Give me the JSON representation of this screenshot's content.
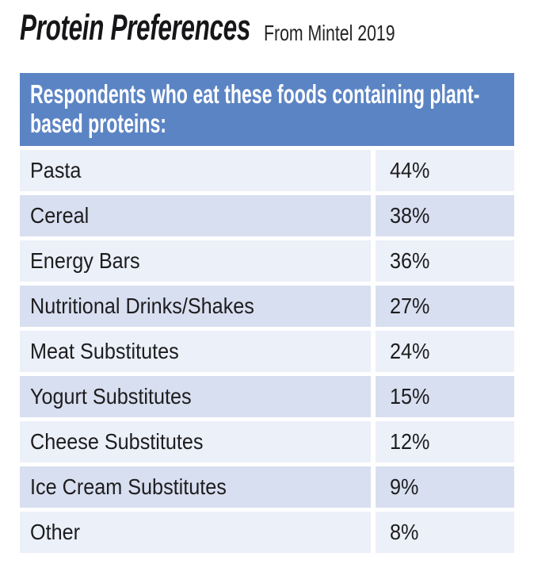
{
  "title": {
    "main": "Protein Preferences",
    "source": "From Mintel 2019"
  },
  "table": {
    "header": "Respondents who eat these foods containing plant-based proteins:",
    "rows": [
      {
        "label": "Pasta",
        "value": "44%"
      },
      {
        "label": "Cereal",
        "value": "38%"
      },
      {
        "label": "Energy Bars",
        "value": "36%"
      },
      {
        "label": "Nutritional Drinks/Shakes",
        "value": "27%"
      },
      {
        "label": "Meat Substitutes",
        "value": "24%"
      },
      {
        "label": "Yogurt Substitutes",
        "value": "15%"
      },
      {
        "label": "Cheese Substitutes",
        "value": "12%"
      },
      {
        "label": "Ice Cream Substitutes",
        "value": "9%"
      },
      {
        "label": "Other",
        "value": "8%"
      }
    ]
  },
  "colors": {
    "header_bg": "#5b84c4",
    "header_text": "#ffffff",
    "row_light": "#ecf0f8",
    "row_dark": "#d8dff0",
    "row_text": "#1d1d1f",
    "title_text": "#161618",
    "page_bg": "#ffffff"
  },
  "chart_data": {
    "type": "table",
    "title": "Protein Preferences",
    "subtitle": "From Mintel 2019",
    "header": "Respondents who eat these foods containing plant-based proteins:",
    "categories": [
      "Pasta",
      "Cereal",
      "Energy Bars",
      "Nutritional Drinks/Shakes",
      "Meat Substitutes",
      "Yogurt Substitutes",
      "Cheese Substitutes",
      "Ice Cream Substitutes",
      "Other"
    ],
    "values": [
      44,
      38,
      36,
      27,
      24,
      15,
      12,
      9,
      8
    ],
    "value_unit": "percent",
    "layout": "two-column table, label left, percentage right, alternating row shading"
  }
}
